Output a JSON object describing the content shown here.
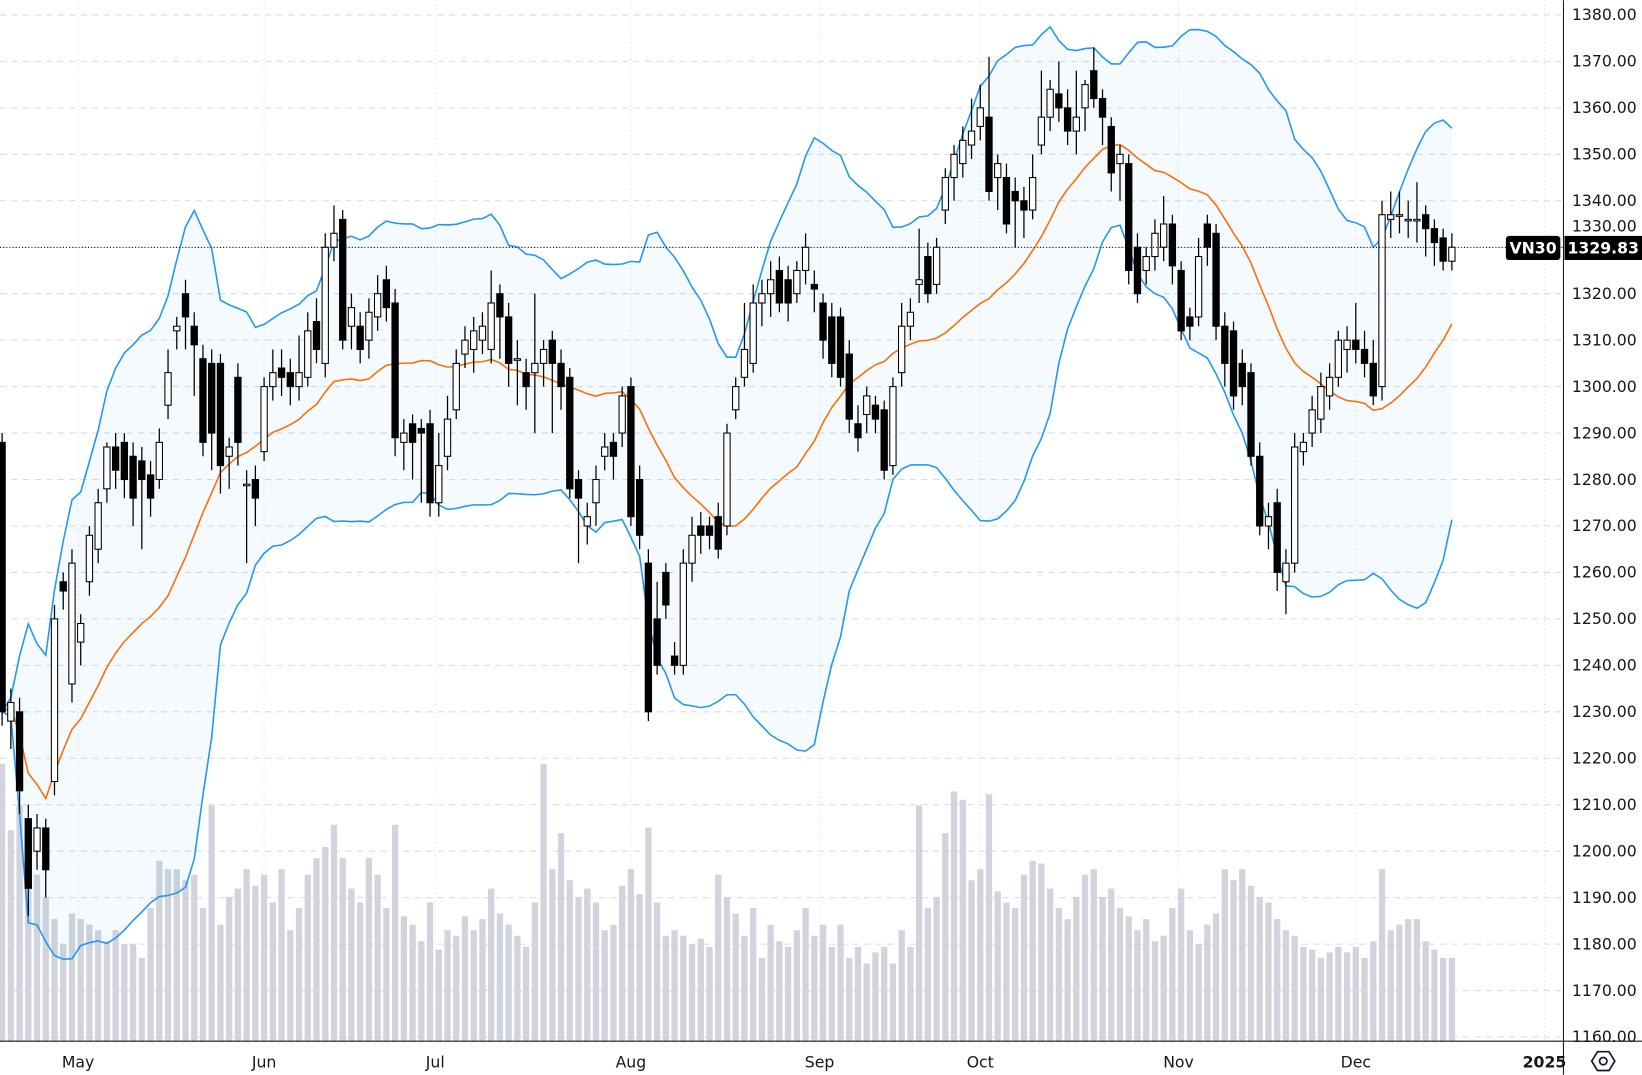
{
  "chart_data": {
    "type": "candlestick",
    "symbol": "VN30",
    "last_price": "1329.83",
    "ylim": [
      1160,
      1380
    ],
    "y_ticks": [
      "1160.00",
      "1170.00",
      "1180.00",
      "1190.00",
      "1200.00",
      "1210.00",
      "1220.00",
      "1230.00",
      "1240.00",
      "1250.00",
      "1260.00",
      "1270.00",
      "1280.00",
      "1290.00",
      "1300.00",
      "1310.00",
      "1320.00",
      "1330.00",
      "1340.00",
      "1350.00",
      "1360.00",
      "1370.00",
      "1380.00"
    ],
    "x_ticks": [
      {
        "label": "May",
        "index": 8.7
      },
      {
        "label": "Jun",
        "index": 30
      },
      {
        "label": "Jul",
        "index": 49.6
      },
      {
        "label": "Aug",
        "index": 72
      },
      {
        "label": "Sep",
        "index": 93.6
      },
      {
        "label": "Oct",
        "index": 112
      },
      {
        "label": "Nov",
        "index": 134.7
      },
      {
        "label": "Dec",
        "index": 155
      },
      {
        "label": "2025",
        "index": 176.6
      }
    ],
    "grid": true,
    "colors": {
      "bollinger": "#2196f3",
      "band_fill": "#2196f3",
      "moving_average": "#ff6d00",
      "volume": "#d1d4dc",
      "up": "#ffffff",
      "down": "#000000"
    },
    "indicators": {
      "bollinger_period": 20,
      "bollinger_stddev": 2
    },
    "candles": [
      [
        1288,
        1290,
        1227,
        1230
      ],
      [
        1228,
        1235,
        1222,
        1232
      ],
      [
        1230,
        1233,
        1208,
        1213
      ],
      [
        1207,
        1210,
        1186,
        1192
      ],
      [
        1200,
        1208,
        1196,
        1205
      ],
      [
        1205,
        1207,
        1190,
        1196
      ],
      [
        1215,
        1253,
        1212,
        1250
      ],
      [
        1258,
        1260,
        1252,
        1256
      ],
      [
        1236,
        1265,
        1232,
        1262
      ],
      [
        1245,
        1251,
        1240,
        1249
      ],
      [
        1258,
        1270,
        1255,
        1268
      ],
      [
        1265,
        1278,
        1262,
        1275
      ],
      [
        1278,
        1288,
        1275,
        1287
      ],
      [
        1287,
        1290,
        1278,
        1282
      ],
      [
        1288,
        1290,
        1276,
        1280
      ],
      [
        1285,
        1288,
        1270,
        1276
      ],
      [
        1284,
        1287,
        1265,
        1280
      ],
      [
        1281,
        1284,
        1272,
        1276
      ],
      [
        1280,
        1291,
        1278,
        1288
      ],
      [
        1296,
        1308,
        1293,
        1303
      ],
      [
        1312,
        1315,
        1308,
        1313
      ],
      [
        1320,
        1323,
        1308,
        1315
      ],
      [
        1313,
        1316,
        1298,
        1309
      ],
      [
        1306,
        1309,
        1285,
        1288
      ],
      [
        1305,
        1308,
        1282,
        1290
      ],
      [
        1305,
        1307,
        1277,
        1283
      ],
      [
        1285,
        1289,
        1278,
        1287
      ],
      [
        1302,
        1305,
        1283,
        1288
      ],
      [
        1279,
        1282,
        1262,
        1279
      ],
      [
        1280,
        1283,
        1270,
        1276
      ],
      [
        1286,
        1302,
        1284,
        1300
      ],
      [
        1300,
        1308,
        1297,
        1303
      ],
      [
        1304,
        1308,
        1298,
        1302
      ],
      [
        1303,
        1306,
        1296,
        1300
      ],
      [
        1300,
        1311,
        1297,
        1303
      ],
      [
        1302,
        1316,
        1300,
        1312
      ],
      [
        1314,
        1319,
        1305,
        1308
      ],
      [
        1305,
        1333,
        1302,
        1330
      ],
      [
        1330,
        1339,
        1327,
        1333
      ],
      [
        1336,
        1338,
        1308,
        1310
      ],
      [
        1313,
        1320,
        1308,
        1317
      ],
      [
        1313,
        1316,
        1305,
        1308
      ],
      [
        1310,
        1319,
        1306,
        1316
      ],
      [
        1315,
        1324,
        1312,
        1320
      ],
      [
        1323,
        1326,
        1314,
        1317
      ],
      [
        1318,
        1321,
        1285,
        1289
      ],
      [
        1288,
        1293,
        1282,
        1290
      ],
      [
        1292,
        1294,
        1280,
        1288
      ],
      [
        1291,
        1293,
        1275,
        1290
      ],
      [
        1292,
        1295,
        1272,
        1275
      ],
      [
        1275,
        1290,
        1272,
        1283
      ],
      [
        1285,
        1298,
        1282,
        1293
      ],
      [
        1295,
        1308,
        1293,
        1305
      ],
      [
        1307,
        1313,
        1304,
        1310
      ],
      [
        1308,
        1315,
        1303,
        1312
      ],
      [
        1310,
        1316,
        1307,
        1313
      ],
      [
        1308,
        1325,
        1305,
        1318
      ],
      [
        1320,
        1322,
        1306,
        1315
      ],
      [
        1315,
        1318,
        1300,
        1305
      ],
      [
        1306,
        1310,
        1296,
        1306
      ],
      [
        1303,
        1306,
        1295,
        1300
      ],
      [
        1303,
        1320,
        1290,
        1305
      ],
      [
        1305,
        1310,
        1300,
        1308
      ],
      [
        1310,
        1312,
        1290,
        1305
      ],
      [
        1305,
        1308,
        1295,
        1300
      ],
      [
        1302,
        1304,
        1276,
        1278
      ],
      [
        1280,
        1282,
        1262,
        1276
      ],
      [
        1270,
        1275,
        1266,
        1272
      ],
      [
        1275,
        1283,
        1270,
        1280
      ],
      [
        1285,
        1290,
        1282,
        1287
      ],
      [
        1288,
        1290,
        1280,
        1285
      ],
      [
        1290,
        1300,
        1287,
        1298
      ],
      [
        1300,
        1302,
        1270,
        1272
      ],
      [
        1280,
        1283,
        1265,
        1268
      ],
      [
        1262,
        1265,
        1228,
        1230
      ],
      [
        1250,
        1258,
        1238,
        1240
      ],
      [
        1260,
        1262,
        1250,
        1253
      ],
      [
        1242,
        1245,
        1238,
        1240
      ],
      [
        1240,
        1265,
        1238,
        1262
      ],
      [
        1262,
        1272,
        1258,
        1268
      ],
      [
        1270,
        1273,
        1264,
        1268
      ],
      [
        1270,
        1272,
        1265,
        1268
      ],
      [
        1272,
        1275,
        1263,
        1265
      ],
      [
        1270,
        1292,
        1268,
        1290
      ],
      [
        1295,
        1302,
        1293,
        1300
      ],
      [
        1302,
        1318,
        1300,
        1308
      ],
      [
        1305,
        1322,
        1303,
        1318
      ],
      [
        1318,
        1323,
        1313,
        1320
      ],
      [
        1320,
        1327,
        1315,
        1323
      ],
      [
        1325,
        1328,
        1316,
        1318
      ],
      [
        1323,
        1326,
        1314,
        1318
      ],
      [
        1320,
        1327,
        1318,
        1325
      ],
      [
        1325,
        1333,
        1322,
        1330
      ],
      [
        1322,
        1325,
        1316,
        1321
      ],
      [
        1318,
        1320,
        1306,
        1310
      ],
      [
        1315,
        1318,
        1302,
        1305
      ],
      [
        1315,
        1317,
        1300,
        1302
      ],
      [
        1307,
        1310,
        1290,
        1293
      ],
      [
        1292,
        1296,
        1286,
        1289
      ],
      [
        1294,
        1300,
        1290,
        1298
      ],
      [
        1296,
        1298,
        1290,
        1293
      ],
      [
        1295,
        1297,
        1280,
        1282
      ],
      [
        1283,
        1302,
        1281,
        1300
      ],
      [
        1303,
        1318,
        1300,
        1313
      ],
      [
        1313,
        1319,
        1310,
        1316
      ],
      [
        1322,
        1334,
        1318,
        1323
      ],
      [
        1328,
        1331,
        1318,
        1320
      ],
      [
        1322,
        1332,
        1320,
        1330
      ],
      [
        1338,
        1347,
        1335,
        1345
      ],
      [
        1345,
        1352,
        1340,
        1350
      ],
      [
        1348,
        1356,
        1345,
        1353
      ],
      [
        1352,
        1362,
        1349,
        1355
      ],
      [
        1356,
        1365,
        1353,
        1360
      ],
      [
        1358,
        1371,
        1340,
        1342
      ],
      [
        1345,
        1350,
        1338,
        1348
      ],
      [
        1345,
        1348,
        1333,
        1335
      ],
      [
        1342,
        1345,
        1330,
        1340
      ],
      [
        1340,
        1343,
        1332,
        1338
      ],
      [
        1338,
        1350,
        1336,
        1345
      ],
      [
        1352,
        1368,
        1350,
        1358
      ],
      [
        1358,
        1366,
        1355,
        1364
      ],
      [
        1363,
        1370,
        1357,
        1360
      ],
      [
        1360,
        1364,
        1352,
        1355
      ],
      [
        1355,
        1368,
        1350,
        1358
      ],
      [
        1360,
        1366,
        1355,
        1365
      ],
      [
        1368,
        1373,
        1360,
        1362
      ],
      [
        1362,
        1364,
        1352,
        1358
      ],
      [
        1356,
        1358,
        1342,
        1346
      ],
      [
        1348,
        1352,
        1340,
        1350
      ],
      [
        1348,
        1350,
        1322,
        1325
      ],
      [
        1330,
        1333,
        1318,
        1320
      ],
      [
        1325,
        1330,
        1322,
        1328
      ],
      [
        1328,
        1336,
        1325,
        1333
      ],
      [
        1330,
        1341,
        1327,
        1335
      ],
      [
        1335,
        1337,
        1322,
        1326
      ],
      [
        1325,
        1327,
        1310,
        1312
      ],
      [
        1315,
        1317,
        1310,
        1313
      ],
      [
        1315,
        1332,
        1313,
        1328
      ],
      [
        1335,
        1337,
        1326,
        1330
      ],
      [
        1333,
        1335,
        1310,
        1313
      ],
      [
        1313,
        1316,
        1300,
        1305
      ],
      [
        1312,
        1314,
        1295,
        1298
      ],
      [
        1305,
        1308,
        1296,
        1300
      ],
      [
        1303,
        1305,
        1283,
        1285
      ],
      [
        1285,
        1288,
        1268,
        1270
      ],
      [
        1270,
        1275,
        1265,
        1272
      ],
      [
        1275,
        1278,
        1256,
        1260
      ],
      [
        1258,
        1265,
        1251,
        1262
      ],
      [
        1262,
        1290,
        1260,
        1287
      ],
      [
        1286,
        1290,
        1283,
        1288
      ],
      [
        1290,
        1298,
        1287,
        1295
      ],
      [
        1293,
        1303,
        1290,
        1300
      ],
      [
        1298,
        1305,
        1295,
        1302
      ],
      [
        1302,
        1312,
        1300,
        1310
      ],
      [
        1308,
        1313,
        1303,
        1310
      ],
      [
        1310,
        1318,
        1305,
        1308
      ],
      [
        1308,
        1312,
        1302,
        1305
      ],
      [
        1305,
        1310,
        1296,
        1298
      ],
      [
        1300,
        1340,
        1297,
        1337
      ],
      [
        1336,
        1342,
        1332,
        1337
      ],
      [
        1337,
        1342,
        1333,
        1337
      ],
      [
        1336,
        1340,
        1332,
        1336
      ],
      [
        1336,
        1344,
        1331,
        1336
      ],
      [
        1337,
        1339,
        1328,
        1334
      ],
      [
        1334,
        1336,
        1326,
        1331
      ],
      [
        1332,
        1334,
        1325,
        1327
      ],
      [
        1327,
        1333,
        1325,
        1330
      ]
    ],
    "volume": [
      100,
      76,
      85,
      58,
      60,
      52,
      44,
      35,
      46,
      44,
      42,
      40,
      36,
      40,
      35,
      35,
      30,
      48,
      65,
      62,
      62,
      58,
      60,
      48,
      85,
      42,
      52,
      55,
      62,
      56,
      60,
      50,
      62,
      40,
      48,
      60,
      66,
      70,
      78,
      66,
      55,
      50,
      66,
      60,
      48,
      78,
      45,
      42,
      36,
      50,
      33,
      40,
      38,
      45,
      40,
      44,
      55,
      46,
      42,
      38,
      34,
      50,
      100,
      62,
      75,
      58,
      52,
      55,
      50,
      40,
      42,
      56,
      62,
      53,
      77,
      50,
      38,
      40,
      38,
      35,
      37,
      34,
      60,
      52,
      46,
      38,
      48,
      30,
      42,
      36,
      34,
      40,
      48,
      38,
      42,
      34,
      42,
      30,
      34,
      28,
      32,
      34,
      28,
      40,
      34,
      85,
      48,
      52,
      75,
      90,
      87,
      58,
      62,
      89,
      54,
      50,
      48,
      60,
      65,
      64,
      55,
      48,
      44,
      52,
      60,
      62,
      52,
      55,
      48,
      45,
      40,
      44,
      36,
      38,
      48,
      55,
      40,
      35,
      42,
      46,
      62,
      58,
      62,
      56,
      52,
      50,
      44,
      40,
      38,
      34,
      33,
      30,
      32,
      34,
      32,
      34,
      30,
      36,
      62,
      40,
      42,
      44,
      44,
      36,
      33,
      30,
      30
    ]
  },
  "ui": {
    "settings_icon": "gear-hexagon-icon"
  }
}
